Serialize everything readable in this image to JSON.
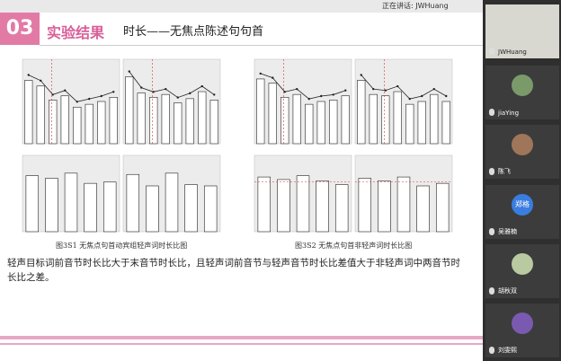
{
  "top_bar": {
    "speaking": "正在讲话: JWHuang"
  },
  "slide": {
    "section_number": "03",
    "section_title": "实验结果",
    "title": "时长——无焦点陈述句句首",
    "figures": [
      {
        "caption": "图3S1 无焦点句首动宾组轻声词时长比图",
        "ylim": [
          0,
          1.2
        ],
        "panels": [
          {
            "values": [
              0.9,
              0.82,
              0.62,
              0.68,
              0.52,
              0.56,
              0.6,
              0.66
            ]
          },
          {
            "values": [
              0.95,
              0.72,
              0.66,
              0.7,
              0.58,
              0.64,
              0.74,
              0.62
            ]
          },
          {
            "values": [
              0.88,
              0.84,
              0.92,
              0.76,
              0.78
            ]
          },
          {
            "values": [
              0.9,
              0.72,
              0.92,
              0.74,
              0.72
            ]
          }
        ]
      },
      {
        "caption": "图3S2 无焦点句首非轻声词时长比图",
        "ylim": [
          0,
          1.2
        ],
        "panels": [
          {
            "values": [
              0.92,
              0.86,
              0.66,
              0.7,
              0.56,
              0.6,
              0.62,
              0.68
            ]
          },
          {
            "values": [
              0.9,
              0.7,
              0.68,
              0.74,
              0.56,
              0.6,
              0.7,
              0.6
            ]
          },
          {
            "values": [
              0.86,
              0.82,
              0.88,
              0.8,
              0.74
            ]
          },
          {
            "values": [
              0.84,
              0.8,
              0.86,
              0.72,
              0.76
            ]
          }
        ]
      }
    ],
    "body": "轻声目标词前音节时长比大于末音节时长比，且轻声词前音节与轻声音节时长比差值大于非轻声词中两音节时长比之差。"
  },
  "participants": [
    {
      "name": "JWHuang"
    },
    {
      "name": "jiaYing"
    },
    {
      "name": "陈飞"
    },
    {
      "name": "吴雅楠",
      "avatar_text": "郑格"
    },
    {
      "name": "胡秋双"
    },
    {
      "name": "刘雯熙"
    }
  ]
}
